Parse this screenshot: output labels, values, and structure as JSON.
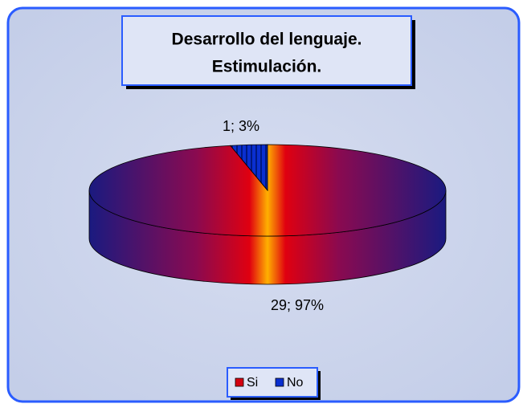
{
  "chart_data": {
    "type": "pie3d",
    "title": [
      "Desarrollo del lenguaje.",
      "Estimulación."
    ],
    "categories": [
      "Si",
      "No"
    ],
    "values": [
      29,
      1
    ],
    "value_labels": [
      "29; 97%",
      "1; 3%"
    ],
    "colors": [
      "#d40010",
      "#0a2fd0"
    ],
    "legend": "bottom"
  }
}
